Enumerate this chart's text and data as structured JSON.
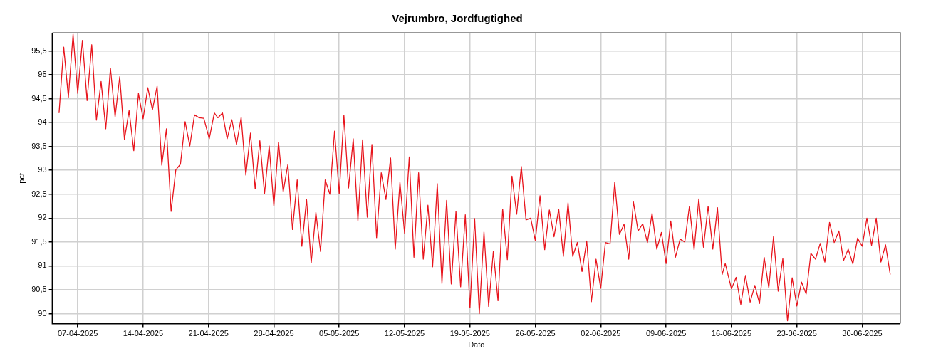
{
  "chart_data": {
    "type": "line",
    "title": "Vejrumbro, Jordfugtighed",
    "xlabel": "Dato",
    "ylabel": "pct",
    "xlim": [
      "2025-04-04T07:00",
      "2025-07-04T02:00"
    ],
    "xticks": [
      {
        "value": "2025-04-07",
        "label": "07-04-2025"
      },
      {
        "value": "2025-04-14",
        "label": "14-04-2025"
      },
      {
        "value": "2025-04-21",
        "label": "21-04-2025"
      },
      {
        "value": "2025-04-28",
        "label": "28-04-2025"
      },
      {
        "value": "2025-05-05",
        "label": "05-05-2025"
      },
      {
        "value": "2025-05-12",
        "label": "12-05-2025"
      },
      {
        "value": "2025-05-19",
        "label": "19-05-2025"
      },
      {
        "value": "2025-05-26",
        "label": "26-05-2025"
      },
      {
        "value": "2025-06-02",
        "label": "02-06-2025"
      },
      {
        "value": "2025-06-09",
        "label": "09-06-2025"
      },
      {
        "value": "2025-06-16",
        "label": "16-06-2025"
      },
      {
        "value": "2025-06-23",
        "label": "23-06-2025"
      },
      {
        "value": "2025-06-30",
        "label": "30-06-2025"
      }
    ],
    "ylim": [
      89.79,
      95.88
    ],
    "yticks": [
      90,
      {
        "value": 90.5,
        "label": "90,5"
      },
      91,
      {
        "value": 91.5,
        "label": "91,5"
      },
      92,
      {
        "value": 92.5,
        "label": "92,5"
      },
      93,
      {
        "value": 93.5,
        "label": "93,5"
      },
      94,
      {
        "value": 94.5,
        "label": "94,5"
      },
      95,
      {
        "value": 95.5,
        "label": "95,5"
      }
    ],
    "grid": true,
    "legend": false,
    "marker": "none",
    "line_style": "solid",
    "series": [
      {
        "color": "#e8141c",
        "x": [
          "2025-04-05T00:00",
          "2025-04-05T12:00",
          "2025-04-06T00:00",
          "2025-04-06T12:00",
          "2025-04-07T00:00",
          "2025-04-07T12:00",
          "2025-04-08T00:00",
          "2025-04-08T12:00",
          "2025-04-09T00:00",
          "2025-04-09T12:00",
          "2025-04-10T00:00",
          "2025-04-10T12:00",
          "2025-04-11T00:00",
          "2025-04-11T12:00",
          "2025-04-12T00:00",
          "2025-04-12T12:00",
          "2025-04-13T00:00",
          "2025-04-13T12:00",
          "2025-04-14T00:00",
          "2025-04-14T12:00",
          "2025-04-15T00:00",
          "2025-04-15T12:00",
          "2025-04-16T00:00",
          "2025-04-16T12:00",
          "2025-04-17T00:00",
          "2025-04-17T12:00",
          "2025-04-18T00:00",
          "2025-04-18T12:00",
          "2025-04-19T00:00",
          "2025-04-19T12:00",
          "2025-04-20T00:00",
          "2025-04-20T12:00",
          "2025-04-21T02:00",
          "2025-04-21T15:00",
          "2025-04-22T00:00",
          "2025-04-22T12:00",
          "2025-04-23T00:00",
          "2025-04-23T12:00",
          "2025-04-24T00:00",
          "2025-04-24T12:00",
          "2025-04-25T00:00",
          "2025-04-25T12:00",
          "2025-04-26T00:00",
          "2025-04-26T12:00",
          "2025-04-27T00:00",
          "2025-04-27T12:00",
          "2025-04-28T00:00",
          "2025-04-28T12:00",
          "2025-04-29T00:00",
          "2025-04-29T12:00",
          "2025-04-30T00:00",
          "2025-04-30T12:00",
          "2025-05-01T00:00",
          "2025-05-01T12:00",
          "2025-05-02T00:00",
          "2025-05-02T12:00",
          "2025-05-03T00:00",
          "2025-05-03T12:00",
          "2025-05-04T00:00",
          "2025-05-04T12:00",
          "2025-05-05T00:00",
          "2025-05-05T12:00",
          "2025-05-06T00:00",
          "2025-05-06T12:00",
          "2025-05-07T00:00",
          "2025-05-07T12:00",
          "2025-05-08T00:00",
          "2025-05-08T12:00",
          "2025-05-09T00:00",
          "2025-05-09T12:00",
          "2025-05-10T00:00",
          "2025-05-10T12:00",
          "2025-05-11T00:00",
          "2025-05-11T12:00",
          "2025-05-12T00:00",
          "2025-05-12T12:00",
          "2025-05-13T00:00",
          "2025-05-13T12:00",
          "2025-05-14T00:00",
          "2025-05-14T12:00",
          "2025-05-15T00:00",
          "2025-05-15T12:00",
          "2025-05-16T00:00",
          "2025-05-16T12:00",
          "2025-05-17T00:00",
          "2025-05-17T12:00",
          "2025-05-18T00:00",
          "2025-05-18T12:00",
          "2025-05-19T00:00",
          "2025-05-19T12:00",
          "2025-05-20T00:00",
          "2025-05-20T12:00",
          "2025-05-21T00:00",
          "2025-05-21T12:00",
          "2025-05-22T00:00",
          "2025-05-22T12:00",
          "2025-05-23T00:00",
          "2025-05-23T12:00",
          "2025-05-24T00:00",
          "2025-05-24T12:00",
          "2025-05-25T00:00",
          "2025-05-25T12:00",
          "2025-05-26T00:00",
          "2025-05-26T12:00",
          "2025-05-27T00:00",
          "2025-05-27T12:00",
          "2025-05-28T00:00",
          "2025-05-28T12:00",
          "2025-05-29T00:00",
          "2025-05-29T12:00",
          "2025-05-30T00:00",
          "2025-05-30T12:00",
          "2025-05-31T00:00",
          "2025-05-31T12:00",
          "2025-06-01T00:00",
          "2025-06-01T12:00",
          "2025-06-02T00:00",
          "2025-06-02T12:00",
          "2025-06-03T00:00",
          "2025-06-03T12:00",
          "2025-06-04T00:00",
          "2025-06-04T12:00",
          "2025-06-05T00:00",
          "2025-06-05T12:00",
          "2025-06-06T00:00",
          "2025-06-06T12:00",
          "2025-06-07T00:00",
          "2025-06-07T12:00",
          "2025-06-08T00:00",
          "2025-06-08T12:00",
          "2025-06-09T00:00",
          "2025-06-09T12:00",
          "2025-06-10T00:00",
          "2025-06-10T12:00",
          "2025-06-11T00:00",
          "2025-06-11T12:00",
          "2025-06-12T00:00",
          "2025-06-12T12:00",
          "2025-06-13T00:00",
          "2025-06-13T12:00",
          "2025-06-14T00:00",
          "2025-06-14T12:00",
          "2025-06-15T00:00",
          "2025-06-15T08:00",
          "2025-06-16T00:00",
          "2025-06-16T12:00",
          "2025-06-17T00:00",
          "2025-06-17T12:00",
          "2025-06-18T00:00",
          "2025-06-18T12:00",
          "2025-06-19T00:00",
          "2025-06-19T12:00",
          "2025-06-20T00:00",
          "2025-06-20T12:00",
          "2025-06-21T00:00",
          "2025-06-21T12:00",
          "2025-06-22T00:00",
          "2025-06-22T12:00",
          "2025-06-23T00:00",
          "2025-06-23T12:00",
          "2025-06-24T00:00",
          "2025-06-24T12:00",
          "2025-06-25T00:00",
          "2025-06-25T12:00",
          "2025-06-26T00:00",
          "2025-06-26T12:00",
          "2025-06-27T00:00",
          "2025-06-27T12:00",
          "2025-06-28T00:00",
          "2025-06-28T12:00",
          "2025-06-29T00:00",
          "2025-06-29T12:00",
          "2025-06-30T00:00",
          "2025-06-30T12:00",
          "2025-07-01T00:00",
          "2025-07-01T12:00",
          "2025-07-02T00:00",
          "2025-07-02T12:00",
          "2025-07-03T00:00"
        ],
        "values": [
          94.2,
          95.58,
          94.53,
          95.85,
          94.61,
          95.72,
          94.46,
          95.63,
          94.05,
          94.86,
          93.87,
          95.14,
          94.12,
          94.96,
          93.65,
          94.25,
          93.41,
          94.61,
          94.08,
          94.73,
          94.27,
          94.76,
          93.11,
          93.87,
          92.14,
          93.01,
          93.13,
          94.02,
          93.51,
          94.16,
          94.1,
          94.09,
          93.66,
          94.2,
          94.1,
          94.2,
          93.66,
          94.06,
          93.54,
          94.11,
          92.9,
          93.78,
          92.61,
          93.62,
          92.51,
          93.51,
          92.25,
          93.59,
          92.55,
          93.12,
          91.76,
          92.8,
          91.41,
          92.39,
          91.06,
          92.12,
          91.3,
          92.8,
          92.5,
          93.82,
          92.51,
          94.15,
          92.63,
          93.66,
          91.94,
          93.64,
          92.02,
          93.54,
          91.59,
          92.95,
          92.39,
          93.26,
          91.35,
          92.75,
          91.68,
          93.28,
          91.18,
          92.95,
          91.14,
          92.27,
          90.98,
          92.72,
          90.63,
          92.37,
          90.62,
          92.14,
          90.56,
          92.07,
          90.12,
          91.99,
          90.0,
          91.71,
          90.15,
          91.3,
          90.27,
          92.19,
          91.13,
          92.88,
          92.08,
          93.08,
          91.96,
          92.0,
          91.53,
          92.47,
          91.34,
          92.17,
          91.61,
          92.19,
          91.2,
          92.32,
          91.2,
          91.49,
          90.88,
          91.52,
          90.25,
          91.14,
          90.53,
          91.49,
          91.46,
          92.75,
          91.66,
          91.87,
          91.14,
          92.34,
          91.73,
          91.88,
          91.49,
          92.1,
          91.35,
          91.7,
          91.05,
          91.94,
          91.18,
          91.56,
          91.5,
          92.25,
          91.34,
          92.4,
          91.39,
          92.25,
          91.35,
          92.22,
          90.82,
          91.05,
          90.52,
          90.76,
          90.19,
          90.8,
          90.24,
          90.59,
          90.21,
          91.18,
          90.54,
          91.61,
          90.47,
          91.15,
          89.85,
          90.75,
          90.16,
          90.66,
          90.41,
          91.26,
          91.14,
          91.47,
          91.08,
          91.91,
          91.49,
          91.73,
          91.11,
          91.35,
          91.04,
          91.58,
          91.41,
          92.0,
          91.43,
          92.0,
          91.08,
          91.44,
          90.82
        ]
      }
    ]
  }
}
